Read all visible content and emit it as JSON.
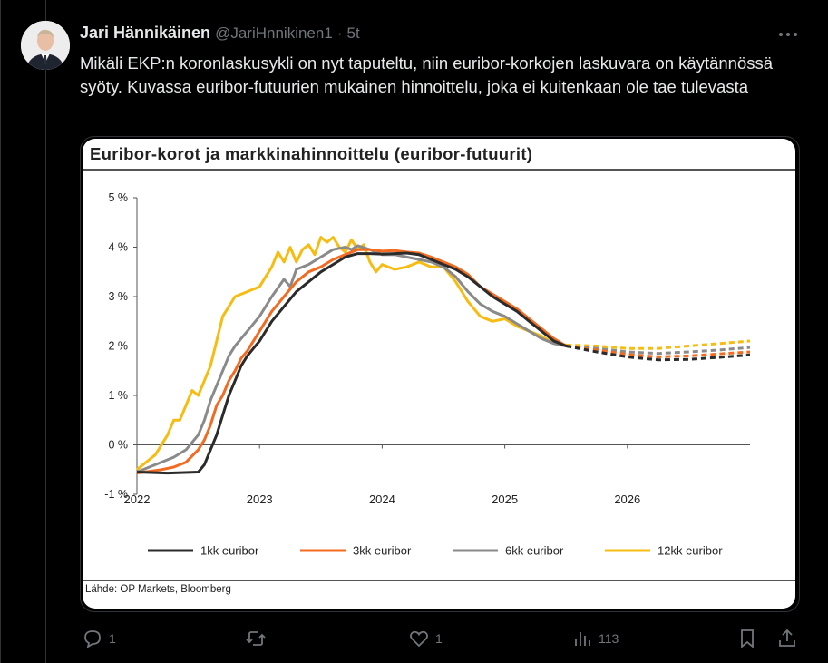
{
  "tweet": {
    "author_name": "Jari Hännikäinen",
    "handle": "@JariHnnikinen1",
    "separator": "·",
    "time": "5t",
    "text": "Mikäli EKP:n koronlaskusykli on nyt taputeltu, niin euribor-korkojen laskuvara on käytännössä syöty. Kuvassa euribor-futuurien mukainen hinnoittelu, joka ei kuitenkaan ole tae tulevasta"
  },
  "icons": {
    "more": "more-horizontal-icon",
    "reply": "reply-icon",
    "retweet": "retweet-icon",
    "like": "heart-icon",
    "views": "views-icon",
    "bookmark": "bookmark-icon",
    "share": "share-icon"
  },
  "actions": {
    "reply_count": "1",
    "retweet_count": "",
    "like_count": "1",
    "views_count": "113"
  },
  "chart_data": {
    "type": "line",
    "title": "Euribor-korot ja markkinahinnoittelu (euribor-futuurit)",
    "source": "Lähde: OP Markets, Bloomberg",
    "x_ticks": [
      "2022",
      "2023",
      "2024",
      "2025",
      "2026"
    ],
    "y_ticks": [
      "5 %",
      "4 %",
      "3 %",
      "2 %",
      "1 %",
      "0 %",
      "-1 %"
    ],
    "xlim": [
      2022.0,
      2027.0
    ],
    "ylim": [
      -1,
      5
    ],
    "forecast_start": 2025.5,
    "legend_position": "bottom",
    "colors": {
      "1kk": "#2b2b2b",
      "3kk": "#f26b21",
      "6kk": "#8a8a8a",
      "12kk": "#f7bc12"
    },
    "series": [
      {
        "key": "1kk",
        "name": "1kk euribor",
        "x": [
          2022.0,
          2022.25,
          2022.5,
          2022.55,
          2022.6,
          2022.65,
          2022.7,
          2022.75,
          2022.8,
          2022.85,
          2022.9,
          2022.95,
          2023.0,
          2023.1,
          2023.2,
          2023.3,
          2023.4,
          2023.5,
          2023.6,
          2023.7,
          2023.8,
          2023.9,
          2024.0,
          2024.1,
          2024.2,
          2024.3,
          2024.4,
          2024.5,
          2024.6,
          2024.7,
          2024.8,
          2024.9,
          2025.0,
          2025.1,
          2025.2,
          2025.3,
          2025.4,
          2025.5,
          2025.75,
          2026.0,
          2026.25,
          2026.5,
          2026.75,
          2027.0
        ],
        "y": [
          -0.55,
          -0.57,
          -0.55,
          -0.4,
          -0.1,
          0.2,
          0.6,
          1.0,
          1.3,
          1.6,
          1.8,
          1.95,
          2.1,
          2.5,
          2.8,
          3.1,
          3.3,
          3.5,
          3.65,
          3.8,
          3.87,
          3.87,
          3.86,
          3.87,
          3.88,
          3.85,
          3.75,
          3.65,
          3.55,
          3.4,
          3.2,
          3.0,
          2.85,
          2.7,
          2.5,
          2.3,
          2.1,
          2.0,
          1.88,
          1.78,
          1.72,
          1.73,
          1.77,
          1.82
        ]
      },
      {
        "key": "3kk",
        "name": "3kk euribor",
        "x": [
          2022.0,
          2022.2,
          2022.3,
          2022.4,
          2022.5,
          2022.55,
          2022.6,
          2022.65,
          2022.7,
          2022.75,
          2022.8,
          2022.85,
          2022.9,
          2023.0,
          2023.1,
          2023.2,
          2023.3,
          2023.4,
          2023.5,
          2023.6,
          2023.7,
          2023.8,
          2023.9,
          2024.0,
          2024.1,
          2024.2,
          2024.3,
          2024.4,
          2024.5,
          2024.6,
          2024.7,
          2024.8,
          2024.9,
          2025.0,
          2025.1,
          2025.2,
          2025.3,
          2025.4,
          2025.5,
          2025.75,
          2026.0,
          2026.25,
          2026.5,
          2026.75,
          2027.0
        ],
        "y": [
          -0.57,
          -0.5,
          -0.45,
          -0.35,
          -0.1,
          0.1,
          0.4,
          0.8,
          1.0,
          1.3,
          1.5,
          1.75,
          1.9,
          2.3,
          2.7,
          3.0,
          3.3,
          3.5,
          3.6,
          3.75,
          3.85,
          3.95,
          3.95,
          3.92,
          3.93,
          3.9,
          3.88,
          3.8,
          3.7,
          3.6,
          3.45,
          3.2,
          3.05,
          2.9,
          2.75,
          2.55,
          2.35,
          2.15,
          2.0,
          1.92,
          1.83,
          1.78,
          1.8,
          1.84,
          1.88
        ]
      },
      {
        "key": "6kk",
        "name": "6kk euribor",
        "x": [
          2022.0,
          2022.2,
          2022.3,
          2022.4,
          2022.5,
          2022.55,
          2022.6,
          2022.65,
          2022.7,
          2022.75,
          2022.8,
          2022.9,
          2023.0,
          2023.1,
          2023.2,
          2023.25,
          2023.3,
          2023.4,
          2023.5,
          2023.6,
          2023.7,
          2023.75,
          2023.8,
          2023.9,
          2024.0,
          2024.1,
          2024.2,
          2024.3,
          2024.4,
          2024.5,
          2024.6,
          2024.7,
          2024.8,
          2024.9,
          2025.0,
          2025.1,
          2025.2,
          2025.3,
          2025.4,
          2025.5,
          2025.75,
          2026.0,
          2026.25,
          2026.5,
          2026.75,
          2027.0
        ],
        "y": [
          -0.55,
          -0.35,
          -0.25,
          -0.1,
          0.2,
          0.5,
          0.9,
          1.2,
          1.5,
          1.8,
          2.0,
          2.3,
          2.6,
          3.0,
          3.35,
          3.2,
          3.55,
          3.65,
          3.8,
          3.95,
          4.0,
          3.95,
          4.03,
          3.95,
          3.85,
          3.85,
          3.8,
          3.75,
          3.7,
          3.6,
          3.4,
          3.1,
          2.85,
          2.7,
          2.6,
          2.45,
          2.3,
          2.15,
          2.05,
          2.0,
          1.95,
          1.88,
          1.85,
          1.88,
          1.92,
          1.97
        ]
      },
      {
        "key": "12kk",
        "name": "12kk euribor",
        "x": [
          2022.0,
          2022.15,
          2022.25,
          2022.3,
          2022.35,
          2022.4,
          2022.45,
          2022.5,
          2022.55,
          2022.6,
          2022.65,
          2022.7,
          2022.75,
          2022.8,
          2022.9,
          2023.0,
          2023.1,
          2023.15,
          2023.2,
          2023.25,
          2023.3,
          2023.35,
          2023.4,
          2023.45,
          2023.5,
          2023.55,
          2023.6,
          2023.65,
          2023.7,
          2023.75,
          2023.8,
          2023.85,
          2023.9,
          2023.95,
          2024.0,
          2024.1,
          2024.2,
          2024.3,
          2024.4,
          2024.5,
          2024.6,
          2024.7,
          2024.8,
          2024.9,
          2025.0,
          2025.1,
          2025.2,
          2025.3,
          2025.4,
          2025.5,
          2025.75,
          2026.0,
          2026.25,
          2026.5,
          2026.75,
          2027.0
        ],
        "y": [
          -0.5,
          -0.2,
          0.2,
          0.5,
          0.5,
          0.8,
          1.1,
          1.0,
          1.3,
          1.6,
          2.1,
          2.6,
          2.8,
          3.0,
          3.1,
          3.2,
          3.6,
          3.9,
          3.7,
          4.0,
          3.7,
          3.95,
          4.05,
          3.85,
          4.2,
          4.1,
          4.2,
          4.0,
          3.9,
          4.15,
          3.95,
          4.05,
          3.7,
          3.5,
          3.65,
          3.55,
          3.6,
          3.7,
          3.6,
          3.6,
          3.3,
          2.9,
          2.6,
          2.5,
          2.55,
          2.4,
          2.3,
          2.2,
          2.05,
          2.02,
          2.0,
          1.95,
          1.95,
          2.0,
          2.05,
          2.1
        ]
      }
    ]
  }
}
